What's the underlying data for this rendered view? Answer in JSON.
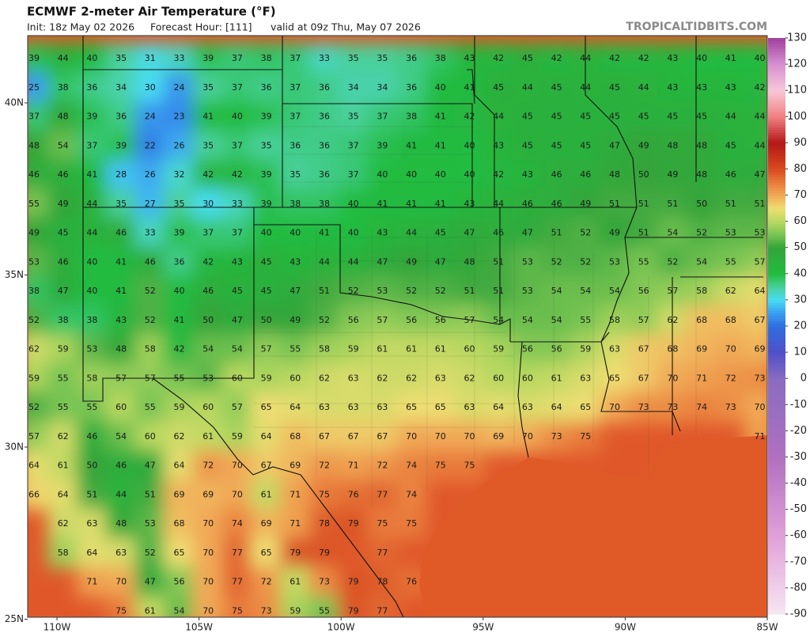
{
  "header": {
    "title": "ECMWF 2-meter Air Temperature (°F)",
    "init": "Init: 18z May 02 2026",
    "forecast_hour": "Forecast Hour: [111]",
    "valid": "valid at 09z Thu, May 07 2026",
    "watermark": "TROPICALTIDBITS.COM"
  },
  "map": {
    "lon_labels": [
      "110W",
      "105W",
      "100W",
      "95W",
      "90W",
      "85W"
    ],
    "lat_labels": [
      "40N",
      "35N",
      "30N",
      "25N"
    ],
    "grid": [
      [
        39,
        44,
        40,
        35,
        31,
        33,
        39,
        37,
        38,
        37,
        33,
        35,
        35,
        36,
        38,
        43,
        42,
        45,
        42,
        44,
        42,
        42,
        43,
        40,
        41,
        40
      ],
      [
        25,
        38,
        36,
        34,
        30,
        24,
        35,
        37,
        36,
        37,
        36,
        34,
        34,
        36,
        40,
        41,
        45,
        44,
        45,
        44,
        45,
        44,
        43,
        43,
        43,
        42
      ],
      [
        37,
        48,
        39,
        36,
        24,
        23,
        41,
        40,
        39,
        37,
        36,
        35,
        37,
        38,
        41,
        42,
        44,
        45,
        45,
        45,
        45,
        45,
        45,
        45,
        44,
        44
      ],
      [
        48,
        54,
        37,
        39,
        22,
        26,
        35,
        37,
        35,
        36,
        36,
        37,
        39,
        41,
        41,
        40,
        43,
        45,
        45,
        45,
        47,
        49,
        48,
        48,
        45,
        44
      ],
      [
        46,
        46,
        41,
        28,
        26,
        32,
        42,
        42,
        39,
        35,
        36,
        37,
        40,
        40,
        40,
        40,
        42,
        43,
        46,
        46,
        48,
        50,
        49,
        48,
        46,
        47
      ],
      [
        55,
        49,
        44,
        35,
        27,
        35,
        30,
        33,
        39,
        38,
        38,
        40,
        41,
        41,
        41,
        43,
        44,
        46,
        46,
        49,
        51,
        51,
        51,
        50,
        51,
        51
      ],
      [
        49,
        45,
        44,
        46,
        33,
        39,
        37,
        37,
        40,
        40,
        41,
        40,
        43,
        44,
        45,
        47,
        46,
        47,
        51,
        52,
        49,
        51,
        54,
        52,
        53,
        53
      ],
      [
        53,
        46,
        40,
        41,
        46,
        36,
        42,
        43,
        45,
        43,
        44,
        44,
        47,
        49,
        47,
        48,
        51,
        53,
        52,
        52,
        53,
        55,
        52,
        54,
        55,
        57
      ],
      [
        38,
        47,
        40,
        41,
        52,
        40,
        46,
        45,
        45,
        47,
        51,
        52,
        53,
        52,
        52,
        51,
        51,
        53,
        54,
        54,
        54,
        56,
        57,
        58,
        62,
        64
      ],
      [
        52,
        38,
        38,
        43,
        52,
        41,
        50,
        47,
        50,
        49,
        52,
        56,
        57,
        56,
        56,
        57,
        54,
        54,
        54,
        55,
        58,
        57,
        62,
        68,
        68,
        67
      ],
      [
        62,
        59,
        53,
        48,
        58,
        42,
        54,
        54,
        57,
        55,
        58,
        59,
        61,
        61,
        61,
        60,
        59,
        56,
        56,
        59,
        63,
        67,
        68,
        69,
        70,
        69
      ],
      [
        59,
        55,
        58,
        57,
        57,
        55,
        53,
        60,
        59,
        60,
        62,
        63,
        62,
        62,
        63,
        62,
        60,
        60,
        61,
        63,
        65,
        67,
        70,
        71,
        72,
        73
      ],
      [
        52,
        55,
        55,
        60,
        55,
        59,
        60,
        57,
        65,
        64,
        63,
        63,
        63,
        65,
        65,
        63,
        64,
        63,
        64,
        65,
        70,
        73,
        73,
        74,
        73,
        70
      ],
      [
        57,
        62,
        46,
        54,
        60,
        62,
        61,
        59,
        64,
        68,
        67,
        67,
        67,
        70,
        70,
        70,
        69,
        70,
        73,
        75,
        null,
        null,
        null,
        null,
        null,
        71
      ],
      [
        64,
        61,
        50,
        46,
        47,
        64,
        72,
        70,
        67,
        69,
        72,
        71,
        72,
        74,
        75,
        75,
        null,
        null,
        null,
        null,
        null,
        null,
        null,
        null,
        null,
        null
      ],
      [
        66,
        64,
        51,
        44,
        51,
        69,
        69,
        70,
        61,
        71,
        75,
        76,
        77,
        74,
        null,
        null,
        null,
        null,
        null,
        null,
        null,
        null,
        null,
        null,
        null,
        null
      ],
      [
        null,
        62,
        63,
        48,
        53,
        68,
        70,
        74,
        69,
        71,
        78,
        79,
        75,
        75,
        null,
        null,
        null,
        null,
        null,
        null,
        null,
        null,
        null,
        null,
        null,
        null
      ],
      [
        null,
        58,
        64,
        63,
        52,
        65,
        70,
        77,
        65,
        79,
        79,
        null,
        77,
        null,
        null,
        null,
        null,
        null,
        null,
        null,
        null,
        null,
        null,
        null,
        null,
        null
      ],
      [
        null,
        null,
        71,
        70,
        47,
        56,
        70,
        77,
        72,
        61,
        73,
        79,
        78,
        76,
        null,
        null,
        null,
        null,
        null,
        null,
        null,
        null,
        null,
        null,
        null,
        null
      ],
      [
        null,
        null,
        null,
        75,
        61,
        54,
        70,
        75,
        73,
        59,
        55,
        79,
        77,
        null,
        null,
        null,
        null,
        null,
        null,
        null,
        null,
        null,
        null,
        null,
        null,
        null
      ]
    ]
  },
  "colorbar": {
    "ticks": [
      130,
      120,
      110,
      100,
      90,
      80,
      70,
      60,
      50,
      40,
      30,
      20,
      10,
      0,
      -10,
      -20,
      -30,
      -40,
      -50,
      -60,
      -70,
      -80,
      -90
    ]
  }
}
